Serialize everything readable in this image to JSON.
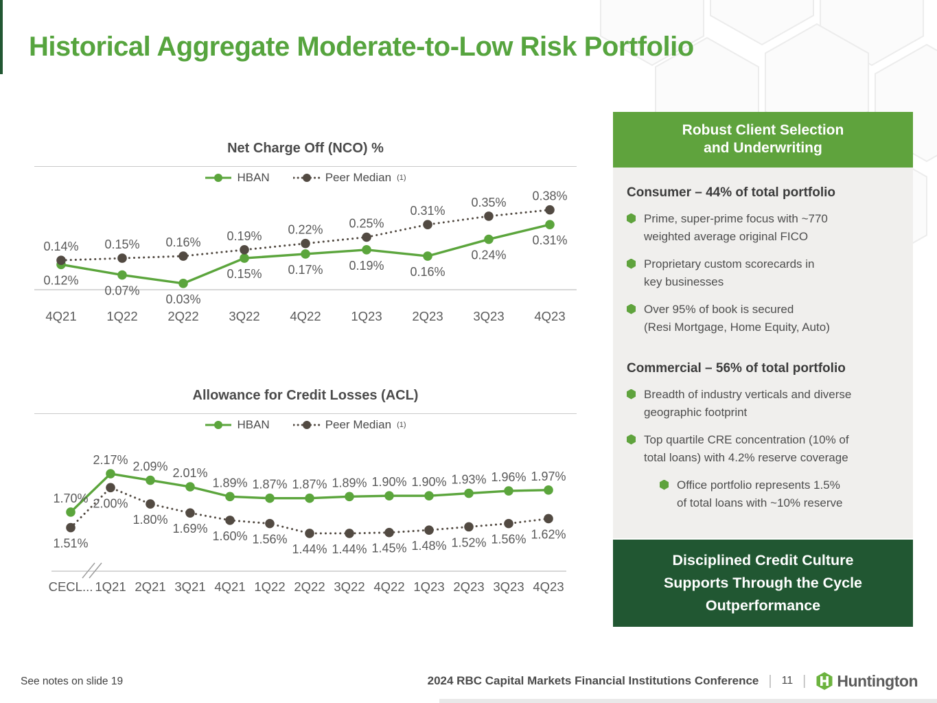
{
  "slide": {
    "title": "Historical Aggregate Moderate-to-Low Risk Portfolio",
    "footer": {
      "note": "See notes on slide 19",
      "conference": "2024 RBC Capital Markets Financial Institutions Conference",
      "page_number": "11",
      "brand": "Huntington"
    }
  },
  "colors": {
    "brand_green": "#56A43E",
    "header_green": "#5FA33D",
    "dark_green": "#215732",
    "hban_series": "#5BA53C",
    "peer_series": "#524A42",
    "label_grey": "#595959",
    "axis_grey": "#bfbfbf"
  },
  "chart_data": [
    {
      "type": "line",
      "title": "Net Charge Off (NCO) %",
      "legend_position": "top",
      "grid": "off",
      "xlabel": "",
      "ylabel": "",
      "ylim": [
        0,
        0.45
      ],
      "categories": [
        "4Q21",
        "1Q22",
        "2Q22",
        "3Q22",
        "4Q22",
        "1Q23",
        "2Q23",
        "3Q23",
        "4Q23"
      ],
      "series": [
        {
          "name": "HBAN",
          "superscript": "",
          "line": "solid",
          "color": "#5BA53C",
          "label_position": "below",
          "values": [
            0.12,
            0.07,
            0.03,
            0.15,
            0.17,
            0.19,
            0.16,
            0.24,
            0.31
          ],
          "labels": [
            "0.12%",
            "0.07%",
            "0.03%",
            "0.15%",
            "0.17%",
            "0.19%",
            "0.16%",
            "0.24%",
            "0.31%"
          ]
        },
        {
          "name": "Peer Median",
          "superscript": "(1)",
          "line": "dotted",
          "color": "#524A42",
          "label_position": "above",
          "values": [
            0.14,
            0.15,
            0.16,
            0.19,
            0.22,
            0.25,
            0.31,
            0.35,
            0.38
          ],
          "labels": [
            "0.14%",
            "0.15%",
            "0.16%",
            "0.19%",
            "0.22%",
            "0.25%",
            "0.31%",
            "0.35%",
            "0.38%"
          ]
        }
      ]
    },
    {
      "type": "line",
      "title": "Allowance for Credit Losses (ACL)",
      "legend_position": "top",
      "grid": "off",
      "xlabel": "",
      "ylabel": "",
      "ylim": [
        0.98,
        2.6
      ],
      "axis_break_after_first": true,
      "categories": [
        "CECL...",
        "1Q21",
        "2Q21",
        "3Q21",
        "4Q21",
        "1Q22",
        "2Q22",
        "3Q22",
        "4Q22",
        "1Q23",
        "2Q23",
        "3Q23",
        "4Q23"
      ],
      "series": [
        {
          "name": "HBAN",
          "superscript": "",
          "line": "solid",
          "color": "#5BA53C",
          "label_position": "above",
          "values": [
            1.7,
            2.17,
            2.09,
            2.01,
            1.89,
            1.87,
            1.87,
            1.89,
            1.9,
            1.9,
            1.93,
            1.96,
            1.97
          ],
          "labels": [
            "1.70%",
            "2.17%",
            "2.09%",
            "2.01%",
            "1.89%",
            "1.87%",
            "1.87%",
            "1.89%",
            "1.90%",
            "1.90%",
            "1.93%",
            "1.96%",
            "1.97%"
          ]
        },
        {
          "name": "Peer Median",
          "superscript": "(1)",
          "line": "dotted",
          "color": "#524A42",
          "label_position": "below",
          "values": [
            1.51,
            2.0,
            1.8,
            1.69,
            1.6,
            1.56,
            1.44,
            1.44,
            1.45,
            1.48,
            1.52,
            1.56,
            1.62
          ],
          "labels": [
            "1.51%",
            "2.00%",
            "1.80%",
            "1.69%",
            "1.60%",
            "1.56%",
            "1.44%",
            "1.44%",
            "1.45%",
            "1.48%",
            "1.52%",
            "1.56%",
            "1.62%"
          ]
        }
      ]
    }
  ],
  "sidebar": {
    "header": "Robust Client Selection\nand Underwriting",
    "sections": [
      {
        "heading": "Consumer – 44% of total portfolio",
        "bullets": [
          {
            "level": 1,
            "text": "Prime, super-prime focus with ~770\nweighted average original FICO"
          },
          {
            "level": 1,
            "text": "Proprietary custom scorecards in\nkey businesses"
          },
          {
            "level": 1,
            "text": "Over 95% of book is secured\n(Resi Mortgage, Home Equity, Auto)"
          }
        ]
      },
      {
        "heading": "Commercial – 56% of total portfolio",
        "bullets": [
          {
            "level": 1,
            "text": "Breadth of industry verticals and diverse\ngeographic footprint"
          },
          {
            "level": 1,
            "text": "Top quartile CRE concentration (10% of\ntotal loans) with 4.2% reserve coverage"
          },
          {
            "level": 2,
            "text": "Office portfolio represents 1.5%\nof total loans with ~10% reserve"
          }
        ]
      }
    ],
    "footer_box": "Disciplined Credit Culture\nSupports Through the Cycle\nOutperformance"
  }
}
